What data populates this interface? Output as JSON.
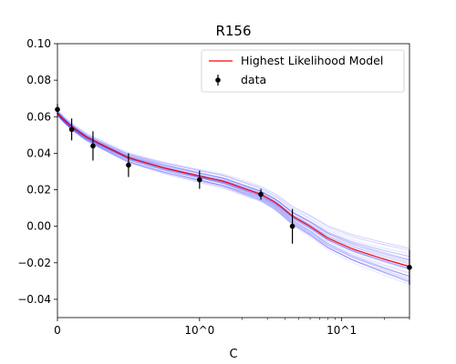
{
  "chart_data": {
    "type": "line",
    "title": "R156",
    "xlabel": "C",
    "ylabel": "",
    "x_scale": "symlog",
    "xlim": [
      0,
      30
    ],
    "ylim": [
      -0.05,
      0.1
    ],
    "grid": false,
    "legend_position": "top-right",
    "x_ticks": [
      {
        "value": 0,
        "label": "0"
      },
      {
        "value": 1,
        "label": "10^0"
      },
      {
        "value": 10,
        "label": "10^1"
      }
    ],
    "y_ticks": [
      {
        "value": -0.04,
        "label": "−0.04"
      },
      {
        "value": -0.02,
        "label": "−0.02"
      },
      {
        "value": 0.0,
        "label": "0.00"
      },
      {
        "value": 0.02,
        "label": "0.02"
      },
      {
        "value": 0.04,
        "label": "0.04"
      },
      {
        "value": 0.06,
        "label": "0.06"
      },
      {
        "value": 0.08,
        "label": "0.08"
      },
      {
        "value": 0.1,
        "label": "0.10"
      }
    ],
    "series": [
      {
        "name": "Highest Likelihood Model",
        "kind": "line",
        "color": "#ff0000",
        "points": [
          [
            0,
            0.062
          ],
          [
            0.05,
            0.058
          ],
          [
            0.1,
            0.0545
          ],
          [
            0.2,
            0.049
          ],
          [
            0.3,
            0.045
          ],
          [
            0.5,
            0.0375
          ],
          [
            0.75,
            0.032
          ],
          [
            1.0,
            0.0275
          ],
          [
            1.5,
            0.0245
          ],
          [
            2.0,
            0.021
          ],
          [
            2.7,
            0.0175
          ],
          [
            3.5,
            0.0125
          ],
          [
            4.5,
            0.0055
          ],
          [
            6.0,
            0.0
          ],
          [
            8.0,
            -0.0065
          ],
          [
            12.0,
            -0.0125
          ],
          [
            20.0,
            -0.018
          ],
          [
            30.0,
            -0.022
          ]
        ]
      },
      {
        "name": "data",
        "kind": "errorbar",
        "color": "#000000",
        "points": [
          {
            "x": 0.0,
            "y": 0.064,
            "yerr": 0.003
          },
          {
            "x": 0.1,
            "y": 0.053,
            "yerr": 0.006
          },
          {
            "x": 0.25,
            "y": 0.044,
            "yerr": 0.008
          },
          {
            "x": 0.5,
            "y": 0.0335,
            "yerr": 0.0065
          },
          {
            "x": 1.0,
            "y": 0.0255,
            "yerr": 0.005
          },
          {
            "x": 2.7,
            "y": 0.0175,
            "yerr": 0.003
          },
          {
            "x": 4.5,
            "y": 0.0,
            "yerr": 0.0095
          },
          {
            "x": 30.0,
            "y": -0.0225,
            "yerr": 0.0095
          }
        ]
      }
    ],
    "posterior_band": {
      "color": "#0000ff",
      "num_samples": 45
    }
  }
}
